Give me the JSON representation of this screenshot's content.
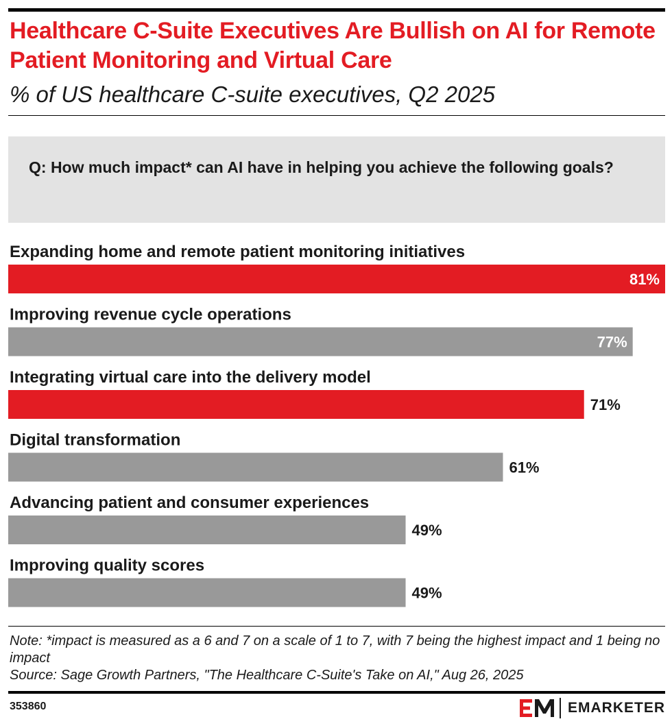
{
  "header": {
    "title": "Healthcare C-Suite Executives Are Bullish on AI for Remote Patient Monitoring and Virtual Care",
    "subtitle": "% of US healthcare C-suite executives, Q2 2025",
    "question": "Q: How much impact* can AI have in helping you achieve the following goals?"
  },
  "chart_data": {
    "type": "bar",
    "orientation": "horizontal",
    "categories": [
      "Expanding home and remote patient monitoring initiatives",
      "Improving revenue cycle operations",
      "Integrating virtual care into the delivery model",
      "Digital transformation",
      "Advancing patient and consumer experiences",
      "Improving quality scores"
    ],
    "values": [
      81,
      77,
      71,
      61,
      49,
      49
    ],
    "value_labels": [
      "81%",
      "77%",
      "71%",
      "61%",
      "49%",
      "49%"
    ],
    "highlighted": [
      true,
      false,
      true,
      false,
      false,
      false
    ],
    "colors": {
      "highlight": "#e31c23",
      "default": "#999999",
      "label_inside": "#ffffff",
      "label_outside": "#1a1a1a"
    },
    "xlim": [
      0,
      81
    ],
    "grid": false,
    "legend": "none"
  },
  "footer": {
    "note": "Note: *impact is measured as a 6 and 7 on a scale of 1 to 7, with 7 being the highest impact and 1 being no impact",
    "source": "Source: Sage Growth Partners, \"The Healthcare C-Suite's Take on AI,\" Aug 26, 2025",
    "chart_id": "353860",
    "brand_name": "EMARKETER",
    "brand_icon": "em-logo-icon"
  }
}
